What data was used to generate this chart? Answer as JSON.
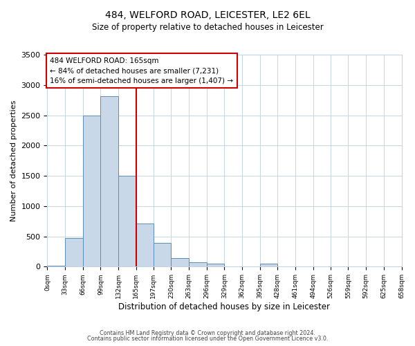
{
  "title_line1": "484, WELFORD ROAD, LEICESTER, LE2 6EL",
  "title_line2": "Size of property relative to detached houses in Leicester",
  "xlabel": "Distribution of detached houses by size in Leicester",
  "ylabel": "Number of detached properties",
  "bin_edges": [
    0,
    33,
    66,
    99,
    132,
    165,
    197,
    230,
    263,
    296,
    329,
    362,
    395,
    428,
    461,
    494,
    526,
    559,
    592,
    625,
    658
  ],
  "bar_heights": [
    20,
    470,
    2500,
    2820,
    1500,
    710,
    390,
    140,
    70,
    55,
    0,
    0,
    50,
    0,
    0,
    0,
    0,
    0,
    0,
    0
  ],
  "bar_color": "#c8d8e8",
  "bar_edge_color": "#5b8db8",
  "vline_x": 165,
  "vline_color": "#cc0000",
  "annotation_title": "484 WELFORD ROAD: 165sqm",
  "annotation_line1": "← 84% of detached houses are smaller (7,231)",
  "annotation_line2": "16% of semi-detached houses are larger (1,407) →",
  "annotation_box_color": "#cc0000",
  "ylim": [
    0,
    3500
  ],
  "yticks": [
    0,
    500,
    1000,
    1500,
    2000,
    2500,
    3000,
    3500
  ],
  "tick_labels": [
    "0sqm",
    "33sqm",
    "66sqm",
    "99sqm",
    "132sqm",
    "165sqm",
    "197sqm",
    "230sqm",
    "263sqm",
    "296sqm",
    "329sqm",
    "362sqm",
    "395sqm",
    "428sqm",
    "461sqm",
    "494sqm",
    "526sqm",
    "559sqm",
    "592sqm",
    "625sqm",
    "658sqm"
  ],
  "footer_line1": "Contains HM Land Registry data © Crown copyright and database right 2024.",
  "footer_line2": "Contains public sector information licensed under the Open Government Licence v3.0.",
  "bg_color": "#ffffff",
  "grid_color": "#c5d5e5"
}
